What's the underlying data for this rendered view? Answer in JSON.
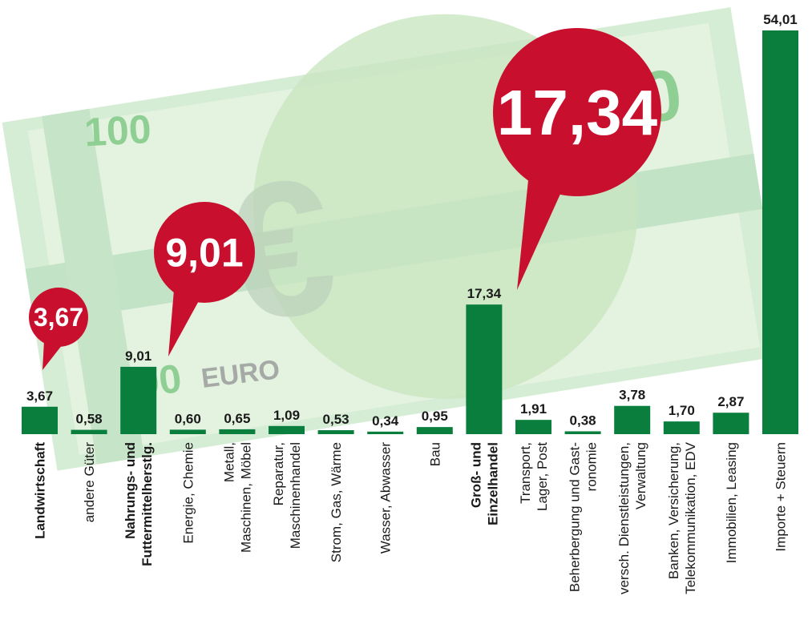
{
  "chart_data": {
    "type": "bar",
    "categories": [
      [
        "Landwirtschaft"
      ],
      [
        "andere Güter"
      ],
      [
        "Nahrungs- und",
        "Futtermittelherstlg."
      ],
      [
        "Energie, Chemie"
      ],
      [
        "Metall,",
        "Maschinen, Möbel"
      ],
      [
        "Reparatur,",
        "Maschinenhandel"
      ],
      [
        "Strom, Gas, Wärme"
      ],
      [
        "Wasser, Abwasser"
      ],
      [
        "Bau"
      ],
      [
        "Groß- und",
        "Einzelhandel"
      ],
      [
        "Transport,",
        "Lager, Post"
      ],
      [
        "Beherbergung und Gast-",
        "ronomie"
      ],
      [
        "versch. Dienstleistungen,",
        "Verwaltung"
      ],
      [
        "Banken, Versicherung,",
        "Telekommunikation, EDV"
      ],
      [
        "Immobilien, Leasing"
      ],
      [
        "Importe + Steuern"
      ]
    ],
    "values": [
      3.67,
      0.58,
      9.01,
      0.6,
      0.65,
      1.09,
      0.53,
      0.34,
      0.95,
      17.34,
      1.91,
      0.38,
      3.78,
      1.7,
      2.87,
      54.01
    ],
    "value_labels": [
      "3,67",
      "0,58",
      "9,01",
      "0,60",
      "0,65",
      "1,09",
      "0,53",
      "0,34",
      "0,95",
      "17,34",
      "1,91",
      "0,38",
      "3,78",
      "1,70",
      "2,87",
      "54,01"
    ],
    "highlighted": [
      0,
      2,
      9
    ],
    "callouts": [
      {
        "index": 0,
        "label": "3,67"
      },
      {
        "index": 2,
        "label": "9,01"
      },
      {
        "index": 9,
        "label": "17,34"
      }
    ],
    "ylim": [
      0,
      54.01
    ],
    "grid": false,
    "colors": {
      "bar": "#0a7e3d",
      "callout": "#c8102e"
    }
  },
  "background": {
    "banknote_text": "100",
    "banknote_text_2": "00",
    "currency_text": "EURO",
    "currency_symbol": "€"
  }
}
